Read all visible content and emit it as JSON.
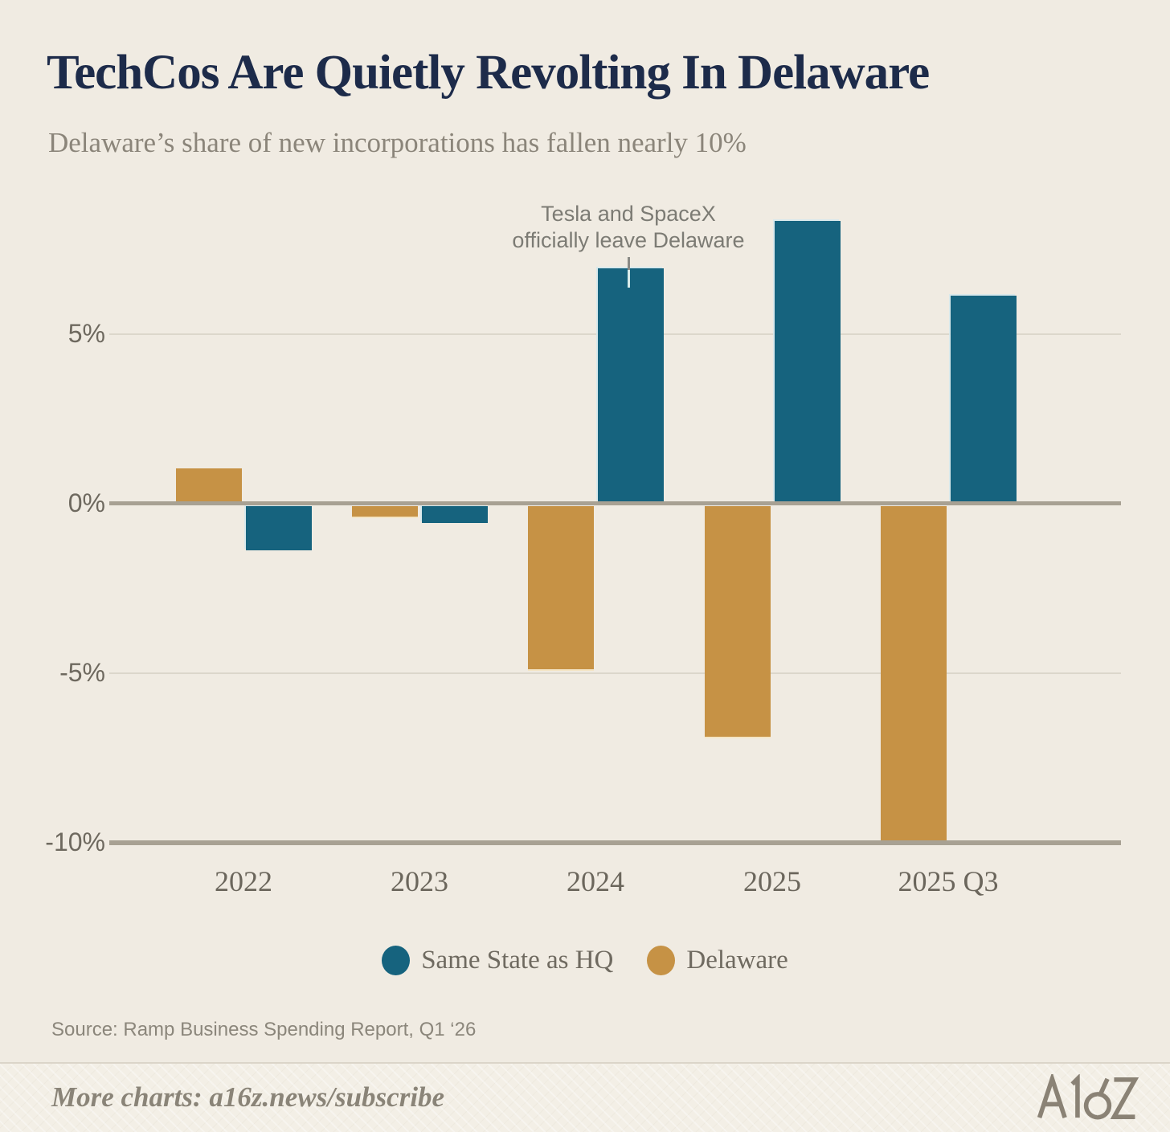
{
  "chart_data": {
    "type": "bar",
    "title": "TechCos Are Quietly Revolting In Delaware",
    "subtitle": "Delaware’s share of new incorporations has fallen nearly 10%",
    "categories": [
      "2022",
      "2023",
      "2024",
      "2025",
      "2025 Q3"
    ],
    "series": [
      {
        "name": "Delaware",
        "color": "#C69245",
        "values": [
          1.0,
          -0.3,
          -4.8,
          -6.8,
          -9.9
        ]
      },
      {
        "name": "Same State as HQ",
        "color": "#16637E",
        "values": [
          -1.3,
          -0.5,
          6.9,
          8.3,
          6.1
        ]
      }
    ],
    "bar_order_note": "Delaware bar drawn on the left, Same State as HQ bar on the right of each category group",
    "units": "percent",
    "xlabel": "",
    "ylabel": "",
    "ylim": [
      -10.6,
      9.0
    ],
    "y_ticks": [
      {
        "value": 5,
        "label": "5%"
      },
      {
        "value": 0,
        "label": "0%"
      },
      {
        "value": -5,
        "label": "-5%"
      },
      {
        "value": -10,
        "label": "-10%"
      }
    ],
    "grid": "thin horizontal gridlines at 5% and -5%; thick axis lines at 0% and -10%",
    "legend_position": "bottom",
    "legend_order": [
      "Same State as HQ",
      "Delaware"
    ],
    "annotation": {
      "line1": "Tesla and SpaceX",
      "line2": "officially leave Delaware",
      "target_category": "2024",
      "target_series": "Same State as HQ"
    }
  },
  "source": "Source: Ramp Business Spending Report, Q1 ‘26",
  "footer": {
    "more_charts": "More charts: a16z.news/subscribe",
    "logo_text": "A16Z"
  },
  "colors": {
    "background": "#F0EBE2",
    "footer_background": "#F3EFE6",
    "title": "#1D2B4A",
    "subtitle": "#8B857A",
    "teal": "#16637E",
    "gold": "#C69245",
    "axis_line": "#A8A193",
    "gridline": "#DCD7CB",
    "tick_label": "#6E695F",
    "annotation_text": "#7C7B74",
    "legend_text": "#6F6A60",
    "source_text": "#8B867B",
    "footer_text": "#8A8478",
    "logo": "#8A8275"
  }
}
